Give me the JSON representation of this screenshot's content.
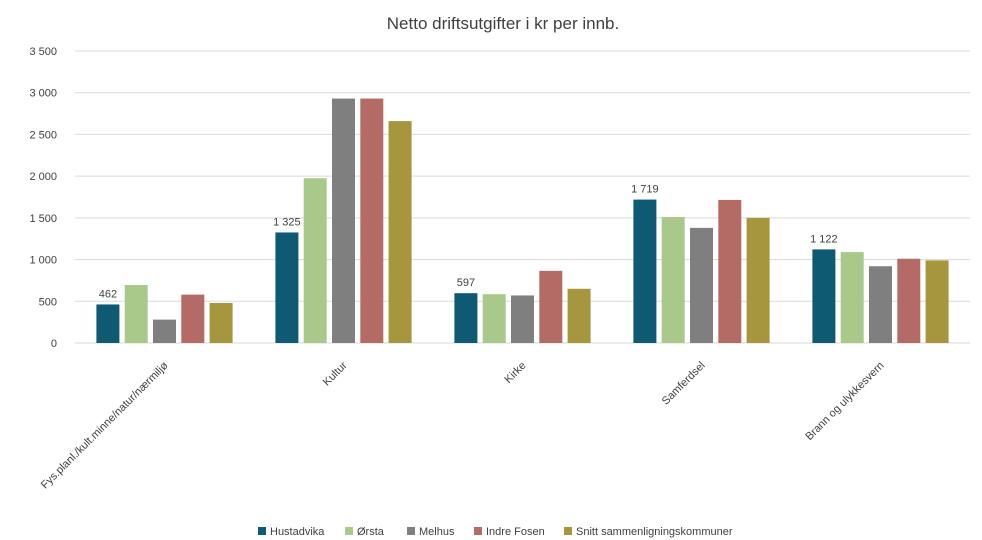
{
  "chart_data": {
    "type": "bar",
    "title": "Netto driftsutgifter i kr per innb.",
    "xlabel": "",
    "ylabel": "",
    "ylim": [
      0,
      3500
    ],
    "yticks": [
      0,
      500,
      1000,
      1500,
      2000,
      2500,
      3000,
      3500
    ],
    "ytick_labels": [
      "0",
      "500",
      "1 000",
      "1 500",
      "2 000",
      "2 500",
      "3 000",
      "3 500"
    ],
    "grid": true,
    "legend_position": "bottom",
    "categories": [
      "Fys.planl./kult.minne/natur/nærmiljø",
      "Kultur",
      "Kirke",
      "Samferdsel",
      "Brann og ulykkesvern"
    ],
    "series": [
      {
        "name": "Hustadvika",
        "color": "#0e5a73",
        "values": [
          462,
          1325,
          597,
          1719,
          1122
        ],
        "labels": [
          "462",
          "1 325",
          "597",
          "1 719",
          "1 122"
        ]
      },
      {
        "name": "Ørsta",
        "color": "#a9c98a",
        "values": [
          695,
          1975,
          585,
          1510,
          1090
        ]
      },
      {
        "name": "Melhus",
        "color": "#7f7f7f",
        "values": [
          280,
          2930,
          570,
          1380,
          920
        ]
      },
      {
        "name": "Indre Fosen",
        "color": "#b56b65",
        "values": [
          580,
          2930,
          865,
          1715,
          1010
        ]
      },
      {
        "name": "Snitt sammenligningskommuner",
        "color": "#a6963e",
        "values": [
          480,
          2660,
          650,
          1500,
          990
        ]
      }
    ]
  }
}
